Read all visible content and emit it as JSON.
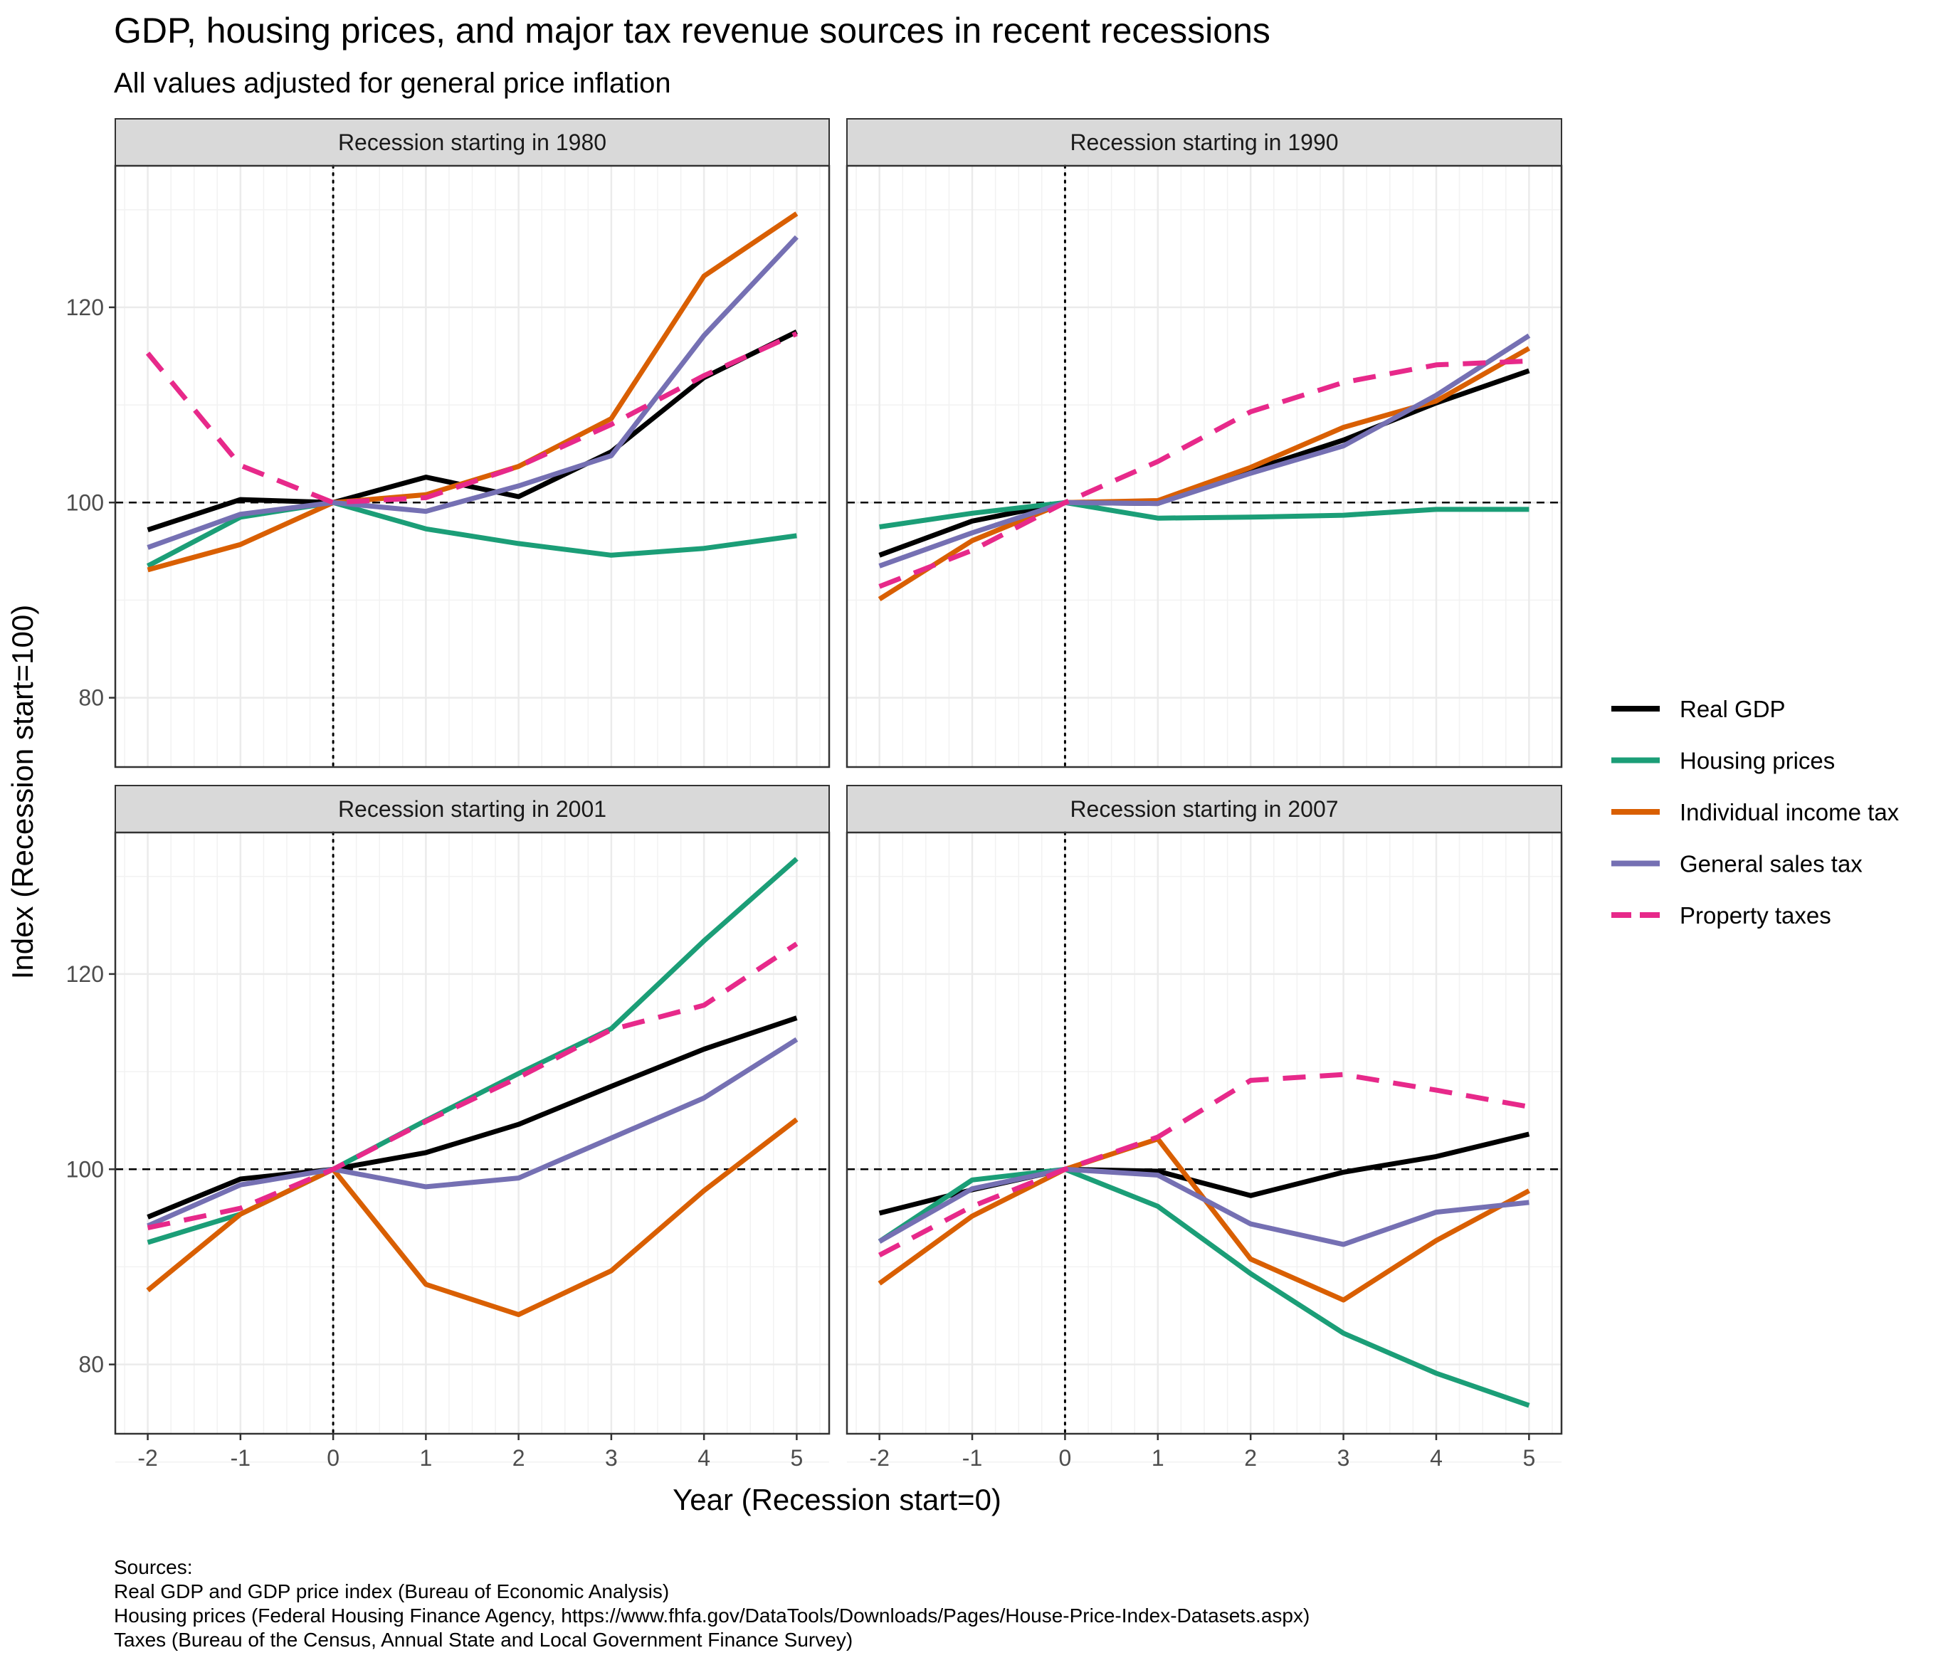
{
  "chart_data": {
    "type": "line",
    "title": "GDP, housing prices, and major tax revenue sources in recent recessions",
    "subtitle": "All values adjusted for general price inflation",
    "xlabel": "Year (Recession start=0)",
    "ylabel": "Index (Recession start=100)",
    "x": [
      -2,
      -1,
      0,
      1,
      2,
      3,
      4,
      5
    ],
    "x_ticks": [
      "-2",
      "-1",
      "0",
      "1",
      "2",
      "3",
      "4",
      "5"
    ],
    "y_ticks": [
      "80",
      "100",
      "120"
    ],
    "xlim": [
      -2.35,
      5.35
    ],
    "ylim": [
      72.9,
      134.5
    ],
    "reference_line_y": 100,
    "reference_line_x": 0,
    "grid": true,
    "legend_position": "right",
    "series_styles": [
      {
        "name": "Real GDP",
        "color": "#000000",
        "dash": "solid"
      },
      {
        "name": "Housing prices",
        "color": "#1b9e77",
        "dash": "solid"
      },
      {
        "name": "Individual income tax",
        "color": "#d95f02",
        "dash": "solid"
      },
      {
        "name": "General sales tax",
        "color": "#7570b3",
        "dash": "solid"
      },
      {
        "name": "Property taxes",
        "color": "#e7298a",
        "dash": "dashed"
      }
    ],
    "panels": [
      {
        "label": "Recession starting in 1980",
        "series": [
          {
            "name": "Real GDP",
            "values": [
              97.2,
              100.3,
              100,
              102.6,
              100.6,
              105.2,
              112.8,
              117.5
            ]
          },
          {
            "name": "Housing prices",
            "values": [
              93.5,
              98.5,
              100,
              97.3,
              95.8,
              94.6,
              95.3,
              96.6
            ]
          },
          {
            "name": "Individual income tax",
            "values": [
              93.1,
              95.7,
              100,
              100.8,
              103.7,
              108.6,
              123.2,
              129.6
            ]
          },
          {
            "name": "General sales tax",
            "values": [
              95.4,
              98.8,
              100,
              99.1,
              101.7,
              104.8,
              117.1,
              127.2
            ]
          },
          {
            "name": "Property taxes",
            "values": [
              115.3,
              103.8,
              100,
              100.5,
              103.7,
              108.0,
              113.0,
              117.3
            ]
          }
        ]
      },
      {
        "label": "Recession starting in 1990",
        "series": [
          {
            "name": "Real GDP",
            "values": [
              94.6,
              98.1,
              100,
              99.9,
              103.3,
              106.4,
              110.2,
              113.5
            ]
          },
          {
            "name": "Housing prices",
            "values": [
              97.5,
              98.9,
              100,
              98.4,
              98.5,
              98.7,
              99.3,
              99.3
            ]
          },
          {
            "name": "Individual income tax",
            "values": [
              90.1,
              96.1,
              100,
              100.2,
              103.6,
              107.7,
              110.4,
              115.8
            ]
          },
          {
            "name": "General sales tax",
            "values": [
              93.5,
              96.9,
              100,
              99.9,
              103.0,
              105.8,
              111.0,
              117.1
            ]
          },
          {
            "name": "Property taxes",
            "values": [
              91.4,
              95.1,
              100,
              104.2,
              109.3,
              112.3,
              114.1,
              114.5
            ]
          }
        ]
      },
      {
        "label": "Recession starting in 2001",
        "series": [
          {
            "name": "Real GDP",
            "values": [
              95.1,
              99.0,
              100,
              101.7,
              104.6,
              108.5,
              112.3,
              115.5
            ]
          },
          {
            "name": "Housing prices",
            "values": [
              92.5,
              95.4,
              100,
              105.0,
              109.8,
              114.4,
              123.4,
              131.8
            ]
          },
          {
            "name": "Individual income tax",
            "values": [
              87.6,
              95.4,
              100,
              88.2,
              85.1,
              89.6,
              97.8,
              105.1
            ]
          },
          {
            "name": "General sales tax",
            "values": [
              94.2,
              98.4,
              100,
              98.2,
              99.1,
              103.2,
              107.3,
              113.3
            ]
          },
          {
            "name": "Property taxes",
            "values": [
              94.0,
              96.0,
              100,
              104.9,
              109.4,
              114.3,
              116.8,
              123.1
            ]
          }
        ]
      },
      {
        "label": "Recession starting in 2007",
        "series": [
          {
            "name": "Real GDP",
            "values": [
              95.5,
              97.9,
              100,
              99.8,
              97.3,
              99.7,
              101.3,
              103.6
            ]
          },
          {
            "name": "Housing prices",
            "values": [
              92.6,
              98.9,
              100,
              96.2,
              89.3,
              83.2,
              79.1,
              75.8
            ]
          },
          {
            "name": "Individual income tax",
            "values": [
              88.3,
              95.2,
              100,
              103.1,
              90.8,
              86.6,
              92.7,
              97.8
            ]
          },
          {
            "name": "General sales tax",
            "values": [
              92.6,
              98.0,
              100,
              99.4,
              94.4,
              92.3,
              95.6,
              96.6
            ]
          },
          {
            "name": "Property taxes",
            "values": [
              91.2,
              96.2,
              100,
              103.3,
              109.1,
              109.7,
              108.1,
              106.4
            ]
          }
        ]
      }
    ]
  },
  "sources": {
    "heading": "Sources:",
    "lines": [
      "Real GDP and GDP price index (Bureau of Economic Analysis)",
      "Housing prices (Federal Housing Finance Agency, https://www.fhfa.gov/DataTools/Downloads/Pages/House-Price-Index-Datasets.aspx)",
      "Taxes (Bureau of the Census, Annual State and Local Government Finance Survey)"
    ]
  }
}
